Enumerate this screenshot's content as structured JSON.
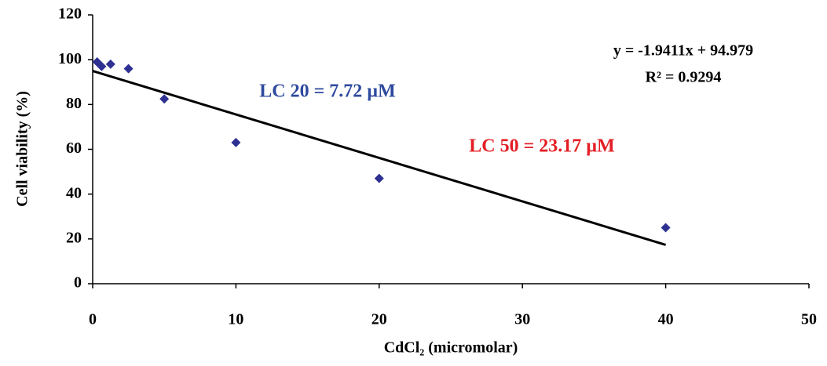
{
  "chart_data": {
    "type": "scatter",
    "x_label": "CdCl₂ (micromolar)",
    "y_label": "Cell viability (%)",
    "series": [
      {
        "color": "#2e3192",
        "x": [
          0.3125,
          0.625,
          1.25,
          2.5,
          5,
          10,
          20,
          40
        ],
        "values": [
          99,
          97,
          98,
          96,
          82.5,
          63,
          47,
          25
        ]
      }
    ],
    "trendline": {
      "slope": -1.9411,
      "intercept": 94.979,
      "x": [
        0,
        40
      ],
      "color": "#000000"
    },
    "annotations": [
      {
        "text": "y = -1.9411x + 94.979",
        "color": "#000000"
      },
      {
        "text": "R² = 0.9294",
        "color": "#000000"
      },
      {
        "text": "LC 20 = 7.72 µM",
        "color": "#2e4a9e"
      },
      {
        "text": "LC 50 = 23.17 µM",
        "color": "#e31e24"
      }
    ],
    "xlim": [
      0,
      50
    ],
    "xticks": [
      0,
      10,
      20,
      30,
      40,
      50
    ],
    "ylim": [
      0,
      120
    ],
    "yticks": [
      0,
      20,
      40,
      60,
      80,
      100,
      120
    ],
    "grid": false
  }
}
